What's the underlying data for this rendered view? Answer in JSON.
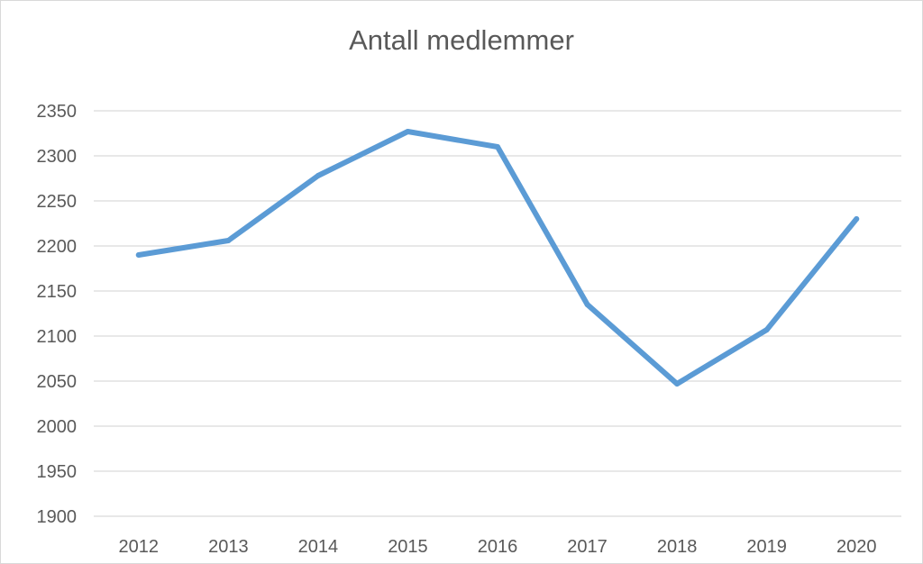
{
  "chart_data": {
    "type": "line",
    "title": "Antall medlemmer",
    "xlabel": "",
    "ylabel": "",
    "categories": [
      "2012",
      "2013",
      "2014",
      "2015",
      "2016",
      "2017",
      "2018",
      "2019",
      "2020"
    ],
    "series": [
      {
        "values": [
          2190,
          2206,
          2278,
          2327,
          2310,
          2135,
          2047,
          2107,
          2230
        ],
        "color": "#5b9bd5"
      }
    ],
    "ylim": [
      1900,
      2350
    ],
    "yticks": [
      1900,
      1950,
      2000,
      2050,
      2100,
      2150,
      2200,
      2250,
      2300,
      2350
    ],
    "grid": true,
    "legend": "none",
    "colors": {
      "gridline": "#d9d9d9",
      "text": "#595959",
      "line": "#5b9bd5"
    }
  }
}
